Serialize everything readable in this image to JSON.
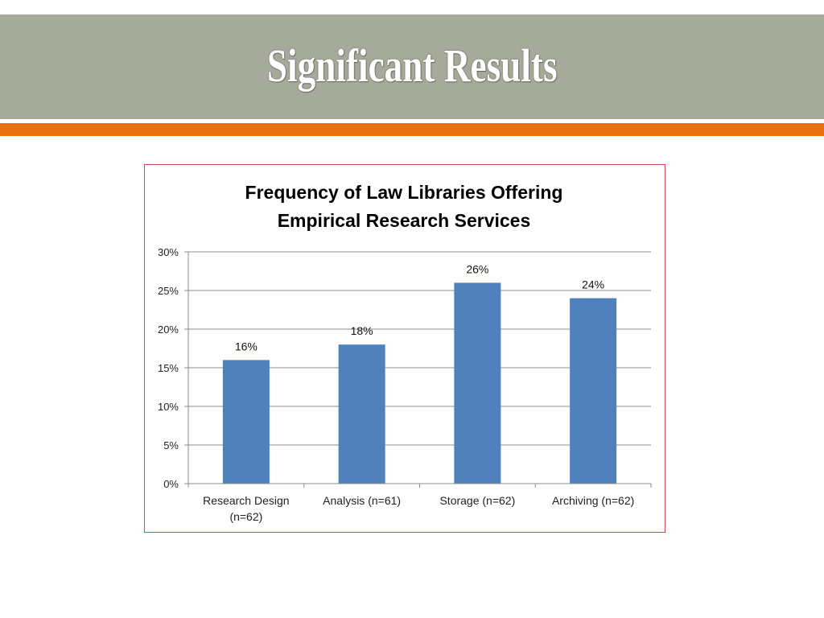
{
  "slide": {
    "title": "Significant Results"
  },
  "colors": {
    "title_band": "#a6aa9a",
    "accent_bar": "#e8700f",
    "chart_border": "#c0504d",
    "bar_fill": "#4f81bd"
  },
  "chart_data": {
    "type": "bar",
    "title_lines": [
      "Frequency of Law Libraries Offering",
      "Empirical Research Services"
    ],
    "categories": [
      [
        "Research Design",
        "(n=62)"
      ],
      [
        "Analysis (n=61)"
      ],
      [
        "Storage (n=62)"
      ],
      [
        "Archiving (n=62)"
      ]
    ],
    "values": [
      16,
      18,
      26,
      24
    ],
    "data_labels": [
      "16%",
      "18%",
      "26%",
      "24%"
    ],
    "ylim": [
      0,
      30
    ],
    "yticks": [
      0,
      5,
      10,
      15,
      20,
      25,
      30
    ],
    "ytick_labels": [
      "0%",
      "5%",
      "10%",
      "15%",
      "20%",
      "25%",
      "30%"
    ],
    "grid": true,
    "legend": "none",
    "xlabel": "",
    "ylabel": ""
  }
}
